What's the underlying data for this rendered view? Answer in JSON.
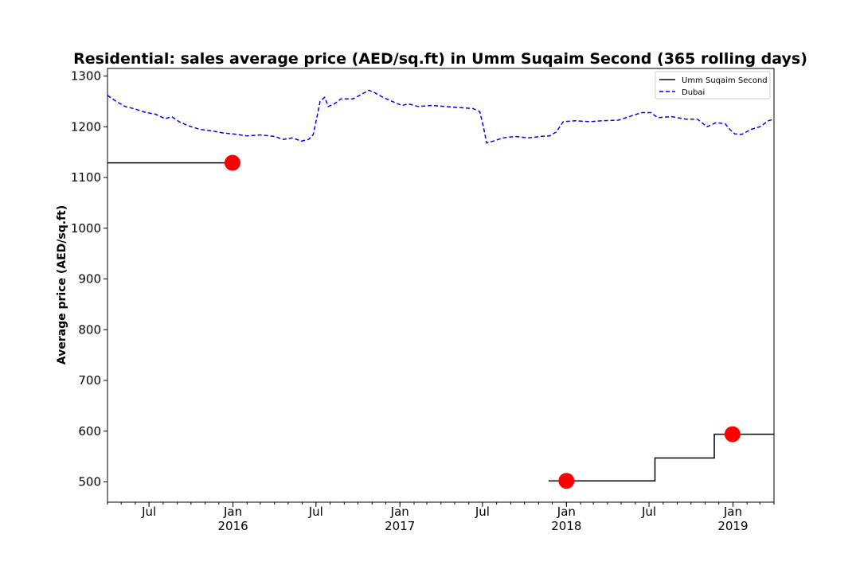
{
  "chart_data": {
    "type": "line",
    "title": "Residential: sales average price (AED/sq.ft) in Umm Suqaim Second (365 rolling days)",
    "xlabel": "",
    "ylabel": "Average price (AED/sq.ft)",
    "xlim": [
      "2015-04-01",
      "2019-04-01"
    ],
    "ylim": [
      460,
      1315
    ],
    "y_ticks": [
      500,
      600,
      700,
      800,
      900,
      1000,
      1100,
      1200,
      1300
    ],
    "x_ticks": [
      {
        "date": "2015-07-01",
        "label": "Jul",
        "sublabel": ""
      },
      {
        "date": "2016-01-01",
        "label": "Jan",
        "sublabel": "2016"
      },
      {
        "date": "2016-07-01",
        "label": "Jul",
        "sublabel": ""
      },
      {
        "date": "2017-01-01",
        "label": "Jan",
        "sublabel": "2017"
      },
      {
        "date": "2017-07-01",
        "label": "Jul",
        "sublabel": ""
      },
      {
        "date": "2018-01-01",
        "label": "Jan",
        "sublabel": "2018"
      },
      {
        "date": "2018-07-01",
        "label": "Jul",
        "sublabel": ""
      },
      {
        "date": "2019-01-01",
        "label": "Jan",
        "sublabel": "2019"
      }
    ],
    "grid": false,
    "legend_position": "top-right",
    "series": [
      {
        "name": "Umm Suqaim Second",
        "color": "#000000",
        "style": "solid-steps",
        "segments": [
          [
            [
              "2015-04-01",
              1129
            ],
            [
              "2015-12-31",
              1129
            ]
          ],
          [
            [
              "2017-11-23",
              502
            ],
            [
              "2018-07-14",
              502
            ],
            [
              "2018-07-14",
              547
            ],
            [
              "2018-11-21",
              547
            ],
            [
              "2018-11-21",
              594
            ],
            [
              "2019-04-01",
              594
            ]
          ]
        ]
      },
      {
        "name": "Dubai",
        "color": "#0000ff",
        "style": "dashed",
        "points": [
          [
            "2015-04-01",
            1262
          ],
          [
            "2015-04-20",
            1250
          ],
          [
            "2015-05-10",
            1240
          ],
          [
            "2015-06-01",
            1235
          ],
          [
            "2015-06-25",
            1228
          ],
          [
            "2015-07-15",
            1225
          ],
          [
            "2015-08-05",
            1216
          ],
          [
            "2015-08-20",
            1220
          ],
          [
            "2015-09-05",
            1210
          ],
          [
            "2015-09-25",
            1202
          ],
          [
            "2015-10-20",
            1195
          ],
          [
            "2015-11-15",
            1192
          ],
          [
            "2015-12-10",
            1188
          ],
          [
            "2016-01-10",
            1185
          ],
          [
            "2016-02-01",
            1182
          ],
          [
            "2016-03-01",
            1184
          ],
          [
            "2016-04-01",
            1181
          ],
          [
            "2016-04-20",
            1175
          ],
          [
            "2016-05-10",
            1178
          ],
          [
            "2016-05-30",
            1172
          ],
          [
            "2016-06-15",
            1175
          ],
          [
            "2016-06-25",
            1185
          ],
          [
            "2016-07-01",
            1210
          ],
          [
            "2016-07-10",
            1250
          ],
          [
            "2016-07-20",
            1258
          ],
          [
            "2016-07-28",
            1240
          ],
          [
            "2016-08-10",
            1245
          ],
          [
            "2016-08-25",
            1255
          ],
          [
            "2016-09-20",
            1255
          ],
          [
            "2016-10-05",
            1262
          ],
          [
            "2016-10-25",
            1272
          ],
          [
            "2016-11-05",
            1268
          ],
          [
            "2016-11-25",
            1258
          ],
          [
            "2016-12-15",
            1250
          ],
          [
            "2017-01-05",
            1242
          ],
          [
            "2017-01-20",
            1245
          ],
          [
            "2017-02-10",
            1240
          ],
          [
            "2017-03-10",
            1242
          ],
          [
            "2017-04-10",
            1240
          ],
          [
            "2017-05-10",
            1238
          ],
          [
            "2017-06-10",
            1236
          ],
          [
            "2017-06-25",
            1230
          ],
          [
            "2017-07-03",
            1200
          ],
          [
            "2017-07-10",
            1168
          ],
          [
            "2017-07-25",
            1172
          ],
          [
            "2017-08-15",
            1178
          ],
          [
            "2017-09-10",
            1181
          ],
          [
            "2017-10-10",
            1178
          ],
          [
            "2017-11-05",
            1181
          ],
          [
            "2017-11-25",
            1182
          ],
          [
            "2017-12-10",
            1190
          ],
          [
            "2017-12-25",
            1210
          ],
          [
            "2018-01-20",
            1212
          ],
          [
            "2018-02-20",
            1210
          ],
          [
            "2018-03-20",
            1212
          ],
          [
            "2018-04-25",
            1213
          ],
          [
            "2018-05-25",
            1222
          ],
          [
            "2018-06-15",
            1228
          ],
          [
            "2018-07-05",
            1228
          ],
          [
            "2018-07-20",
            1218
          ],
          [
            "2018-08-20",
            1220
          ],
          [
            "2018-09-20",
            1215
          ],
          [
            "2018-10-15",
            1215
          ],
          [
            "2018-11-05",
            1200
          ],
          [
            "2018-11-25",
            1208
          ],
          [
            "2018-12-15",
            1206
          ],
          [
            "2018-12-25",
            1195
          ],
          [
            "2019-01-05",
            1186
          ],
          [
            "2019-01-20",
            1185
          ],
          [
            "2019-02-10",
            1195
          ],
          [
            "2019-03-01",
            1200
          ],
          [
            "2019-03-20",
            1212
          ],
          [
            "2019-04-01",
            1215
          ]
        ]
      }
    ],
    "highlight_points": {
      "color": "#ff0000",
      "points": [
        [
          "2015-12-31",
          1129
        ],
        [
          "2018-01-01",
          502
        ],
        [
          "2018-12-31",
          594
        ]
      ]
    }
  }
}
